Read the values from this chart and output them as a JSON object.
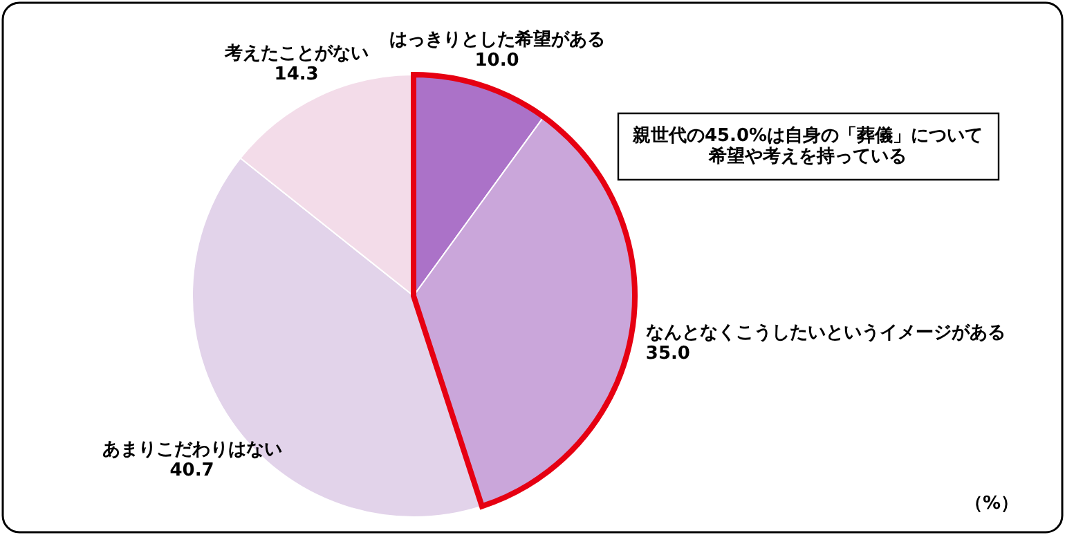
{
  "chart_data": {
    "type": "pie",
    "categories": [
      "はっきりとした希望がある",
      "なんとなくこうしたいというイメージがある",
      "あまりこだわりはない",
      "考えたことがない"
    ],
    "values": [
      10.0,
      35.0,
      40.7,
      14.3
    ],
    "value_labels": [
      "10.0",
      "35.0",
      "40.7",
      "14.3"
    ],
    "colors": [
      "#ab72c8",
      "#caa6da",
      "#e2d3ea",
      "#f3dce9"
    ],
    "annotations": [
      "親世代の45.0%は自身の「葬儀」について希望や考えを持っている",
      "（%）"
    ]
  }
}
